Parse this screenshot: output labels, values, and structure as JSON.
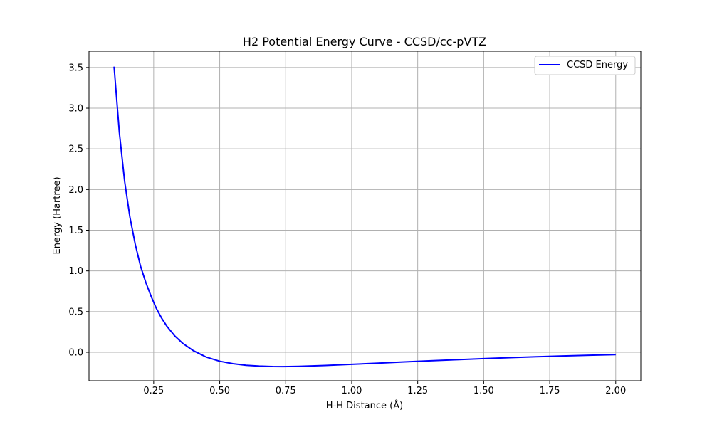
{
  "chart_data": {
    "type": "line",
    "title": "H2 Potential Energy Curve - CCSD/cc-pVTZ",
    "xlabel": "H-H Distance (Å)",
    "ylabel": "Energy (Hartree)",
    "xlim": [
      0.005,
      2.095
    ],
    "ylim": [
      -0.35,
      3.7
    ],
    "xticks": [
      0.25,
      0.5,
      0.75,
      1.0,
      1.25,
      1.5,
      1.75,
      2.0
    ],
    "xtick_labels": [
      "0.25",
      "0.50",
      "0.75",
      "1.00",
      "1.25",
      "1.50",
      "1.75",
      "2.00"
    ],
    "yticks": [
      0.0,
      0.5,
      1.0,
      1.5,
      2.0,
      2.5,
      3.0,
      3.5
    ],
    "ytick_labels": [
      "0.0",
      "0.5",
      "1.0",
      "1.5",
      "2.0",
      "2.5",
      "3.0",
      "3.5"
    ],
    "grid": true,
    "legend_position": "top-right",
    "series": [
      {
        "name": "CCSD Energy",
        "color": "#0000ff",
        "x": [
          0.1,
          0.12,
          0.14,
          0.16,
          0.18,
          0.2,
          0.22,
          0.24,
          0.26,
          0.28,
          0.3,
          0.33,
          0.36,
          0.4,
          0.45,
          0.5,
          0.55,
          0.6,
          0.65,
          0.7,
          0.74,
          0.8,
          0.9,
          1.0,
          1.1,
          1.2,
          1.3,
          1.4,
          1.5,
          1.6,
          1.7,
          1.8,
          1.9,
          2.0
        ],
        "values": [
          3.51,
          2.7,
          2.1,
          1.66,
          1.33,
          1.06,
          0.86,
          0.69,
          0.54,
          0.42,
          0.32,
          0.2,
          0.11,
          0.02,
          -0.06,
          -0.11,
          -0.14,
          -0.16,
          -0.17,
          -0.175,
          -0.176,
          -0.173,
          -0.162,
          -0.148,
          -0.133,
          -0.118,
          -0.104,
          -0.091,
          -0.078,
          -0.066,
          -0.055,
          -0.045,
          -0.036,
          -0.028
        ]
      }
    ]
  }
}
